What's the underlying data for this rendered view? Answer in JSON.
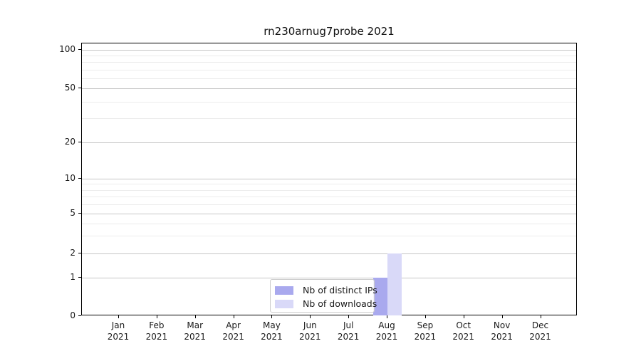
{
  "title": "rn230arnug7probe 2021",
  "chart_data": {
    "type": "bar",
    "title": "rn230arnug7probe 2021",
    "x": {
      "months": [
        "Jan",
        "Feb",
        "Mar",
        "Apr",
        "May",
        "Jun",
        "Jul",
        "Aug",
        "Sep",
        "Oct",
        "Nov",
        "Dec"
      ],
      "year": "2021"
    },
    "series": [
      {
        "name": "Nb of distinct IPs",
        "color": "#a9a9ee",
        "values": [
          0,
          0,
          0,
          0,
          0,
          0,
          0,
          1,
          0,
          0,
          0,
          0
        ]
      },
      {
        "name": "Nb of downloads",
        "color": "#d9d9f8",
        "values": [
          0,
          0,
          0,
          0,
          0,
          0,
          0,
          2,
          0,
          0,
          0,
          0
        ]
      }
    ],
    "yaxis": {
      "scale": "symlog",
      "major_ticks": [
        0,
        1,
        2,
        5,
        10,
        20,
        50,
        100
      ],
      "minor_ticks": [
        3,
        4,
        6,
        7,
        8,
        9,
        30,
        40,
        60,
        70,
        80,
        90
      ],
      "ylim": [
        0,
        112
      ]
    },
    "legend": {
      "position": "lower center"
    },
    "grid": true
  },
  "colors": {
    "major_grid": "#c6c6c6",
    "minor_grid": "#ececec",
    "axis": "#000000",
    "legend_border": "#cccccc"
  }
}
